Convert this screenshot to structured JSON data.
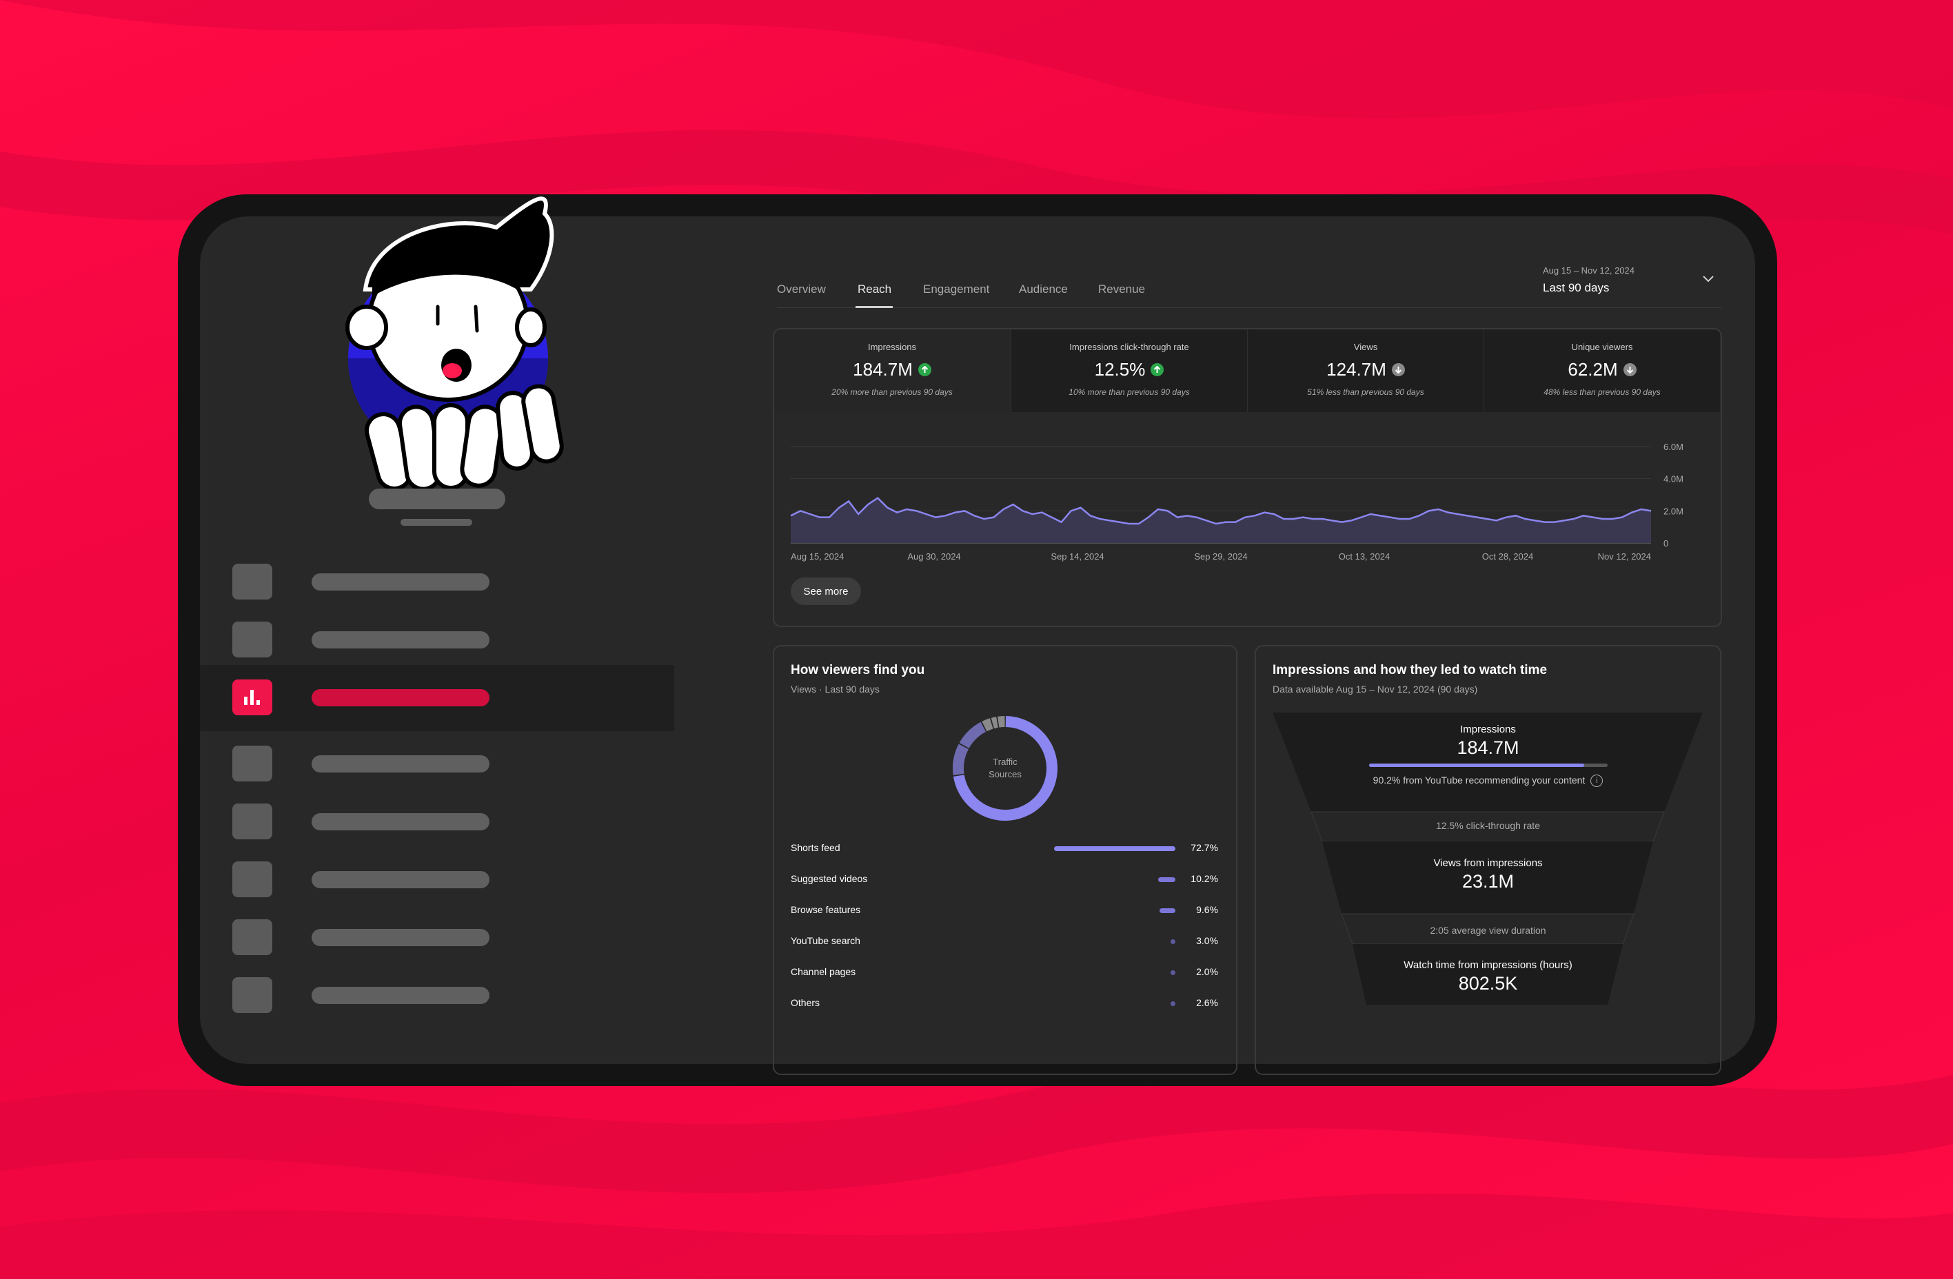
{
  "tabs": [
    "Overview",
    "Reach",
    "Engagement",
    "Audience",
    "Revenue"
  ],
  "active_tab": "Reach",
  "date_range": {
    "range_text": "Aug 15 – Nov 12, 2024",
    "period_label": "Last 90 days"
  },
  "metrics": [
    {
      "label": "Impressions",
      "value": "184.7M",
      "trend": "up",
      "note": "20% more than previous 90 days"
    },
    {
      "label": "Impressions click-through rate",
      "value": "12.5%",
      "trend": "up",
      "note": "10% more than previous 90 days"
    },
    {
      "label": "Views",
      "value": "124.7M",
      "trend": "down",
      "note": "51% less than previous 90 days"
    },
    {
      "label": "Unique viewers",
      "value": "62.2M",
      "trend": "down",
      "note": "48% less than previous 90 days"
    }
  ],
  "chart_data": {
    "type": "area",
    "title": "",
    "x_ticks": [
      "Aug 15, 2024",
      "Aug 30, 2024",
      "Sep 14, 2024",
      "Sep 29, 2024",
      "Oct 13, 2024",
      "Oct 28, 2024",
      "Nov 12, 2024"
    ],
    "y_ticks": [
      "6.0M",
      "4.0M",
      "2.0M",
      "0"
    ],
    "ylim": [
      0,
      6.0
    ],
    "y_unit": "M",
    "values": [
      1.7,
      2.0,
      1.8,
      1.6,
      1.6,
      2.2,
      2.6,
      1.8,
      2.4,
      2.8,
      2.2,
      1.9,
      2.1,
      2.0,
      1.8,
      1.6,
      1.7,
      1.9,
      2.0,
      1.7,
      1.5,
      1.6,
      2.1,
      2.4,
      2.0,
      1.8,
      1.9,
      1.6,
      1.3,
      2.0,
      2.2,
      1.7,
      1.5,
      1.4,
      1.3,
      1.2,
      1.2,
      1.6,
      2.1,
      2.0,
      1.6,
      1.7,
      1.6,
      1.4,
      1.2,
      1.3,
      1.3,
      1.6,
      1.7,
      1.9,
      1.8,
      1.5,
      1.5,
      1.6,
      1.5,
      1.5,
      1.4,
      1.3,
      1.4,
      1.6,
      1.8,
      1.7,
      1.6,
      1.5,
      1.5,
      1.7,
      2.0,
      2.1,
      1.9,
      1.8,
      1.7,
      1.6,
      1.5,
      1.4,
      1.6,
      1.7,
      1.5,
      1.4,
      1.3,
      1.3,
      1.4,
      1.5,
      1.7,
      1.6,
      1.5,
      1.5,
      1.6,
      1.9,
      2.1,
      2.0
    ]
  },
  "see_more_label": "See more",
  "traffic": {
    "title": "How viewers find you",
    "subtitle": "Views · Last 90 days",
    "donut_label_line1": "Traffic",
    "donut_label_line2": "Sources",
    "sources": [
      {
        "label": "Shorts feed",
        "percent": "72.7%",
        "value": 72.7
      },
      {
        "label": "Suggested videos",
        "percent": "10.2%",
        "value": 10.2
      },
      {
        "label": "Browse features",
        "percent": "9.6%",
        "value": 9.6
      },
      {
        "label": "YouTube search",
        "percent": "3.0%",
        "value": 3.0
      },
      {
        "label": "Channel pages",
        "percent": "2.0%",
        "value": 2.0
      },
      {
        "label": "Others",
        "percent": "2.6%",
        "value": 2.6
      }
    ]
  },
  "funnel": {
    "title": "Impressions and how they led to watch time",
    "subtitle": "Data available Aug 15 – Nov 12, 2024 (90 days)",
    "impressions_label": "Impressions",
    "impressions_value": "184.7M",
    "recommend_note": "90.2% from YouTube recommending your content",
    "recommend_fraction": 0.902,
    "ctr_note": "12.5% click-through rate",
    "views_label": "Views from impressions",
    "views_value": "23.1M",
    "avg_duration_note": "2:05 average view duration",
    "watch_label": "Watch time from impressions (hours)",
    "watch_value": "802.5K"
  },
  "colors": {
    "background": "#ff0a45",
    "accent": "#8b86f0",
    "active_nav": "#f0164c",
    "up": "#2ba84a"
  }
}
